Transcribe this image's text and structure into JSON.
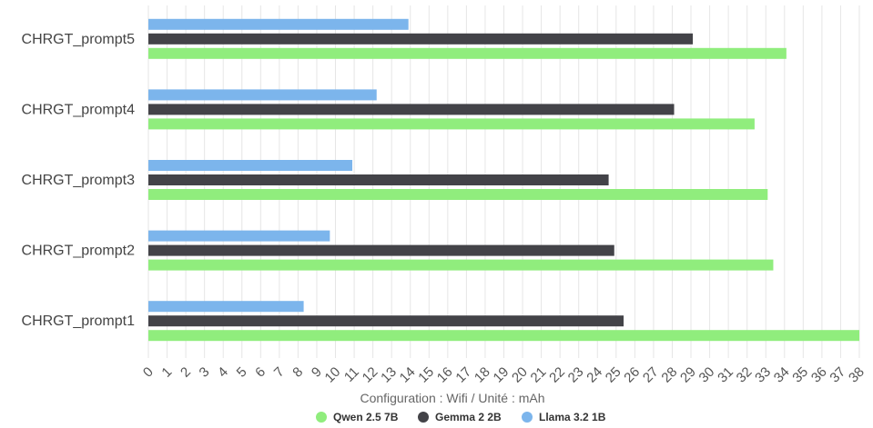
{
  "chart_data": {
    "type": "bar",
    "orientation": "horizontal",
    "categories": [
      "CHRGT_prompt5",
      "CHRGT_prompt4",
      "CHRGT_prompt3",
      "CHRGT_prompt2",
      "CHRGT_prompt1"
    ],
    "series": [
      {
        "name": "Llama 3.2 1B",
        "color": "#7cb5ec",
        "values": [
          13.9,
          12.2,
          10.9,
          9.7,
          8.3
        ]
      },
      {
        "name": "Gemma 2 2B",
        "color": "#434348",
        "values": [
          29.1,
          28.1,
          24.6,
          24.9,
          25.4
        ]
      },
      {
        "name": "Qwen 2.5 7B",
        "color": "#90ed7d",
        "values": [
          34.1,
          32.4,
          33.1,
          33.4,
          38.0
        ]
      }
    ],
    "xlabel": "Configuration : Wifi / Unité : mAh",
    "xlim": [
      0,
      38
    ],
    "xticks": [
      "0",
      "1",
      "2",
      "3",
      "4",
      "5",
      "6",
      "7",
      "8",
      "9",
      "10",
      "11",
      "12",
      "13",
      "14",
      "15",
      "16",
      "17",
      "18",
      "19",
      "20",
      "21",
      "22",
      "23",
      "24",
      "25",
      "26",
      "27",
      "28",
      "29",
      "30",
      "31",
      "32",
      "33",
      "34",
      "35",
      "36",
      "37",
      "38"
    ],
    "legend": [
      {
        "name": "Qwen 2.5 7B",
        "color": "#90ed7d"
      },
      {
        "name": "Gemma 2 2B",
        "color": "#434348"
      },
      {
        "name": "Llama 3.2 1B",
        "color": "#7cb5ec"
      }
    ],
    "legend_position": "bottom-center",
    "grid": true
  }
}
